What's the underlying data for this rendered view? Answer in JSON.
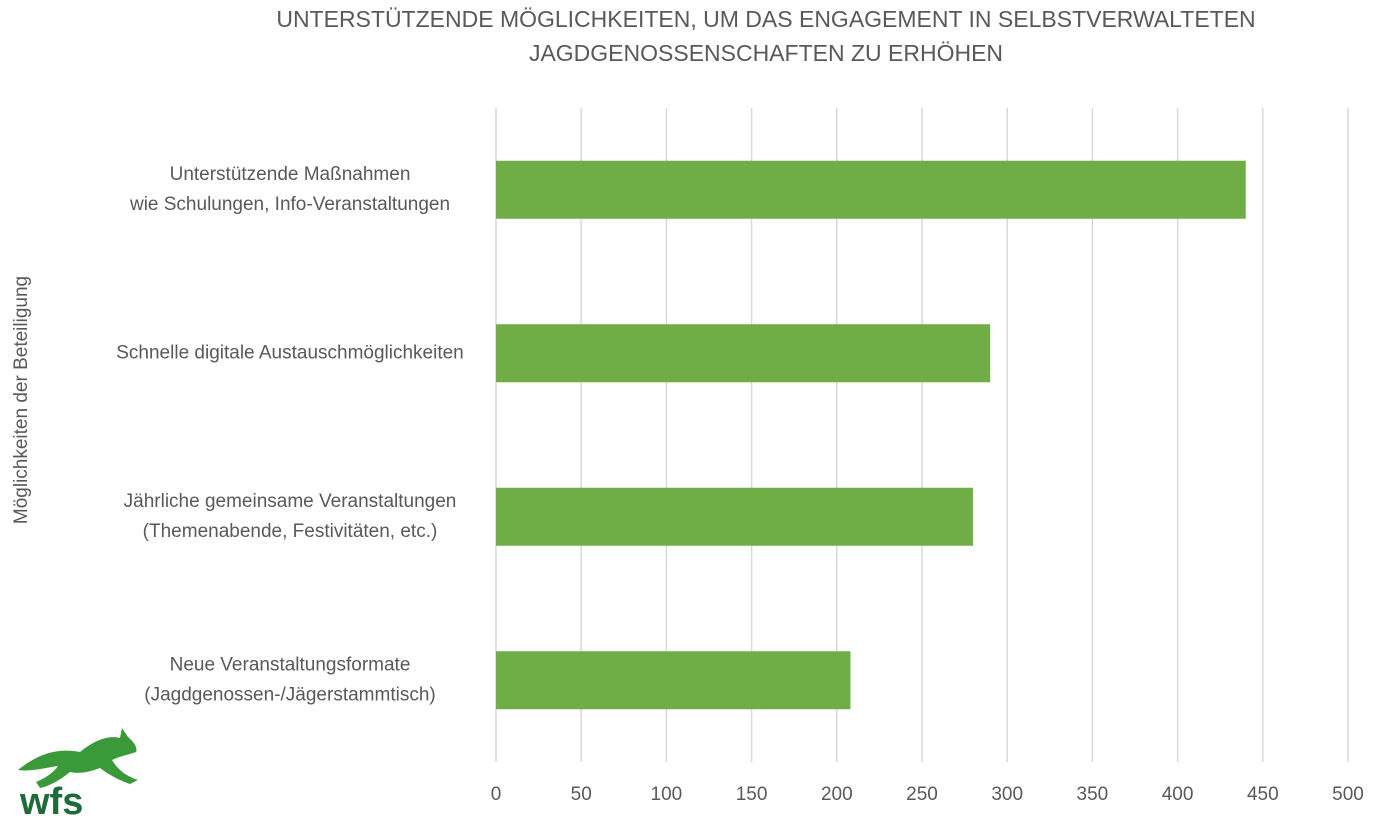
{
  "chart_data": {
    "type": "bar",
    "orientation": "horizontal",
    "title": "UNTERSTÜTZENDE MÖGLICHKEITEN, UM DAS ENGAGEMENT IN SELBSTVERWALTETEN\nJAGDGENOSSENSCHAFTEN ZU ERHÖHEN",
    "y_label": "Möglichkeiten der Beteiligung",
    "categories": [
      "Unterstützende Maßnahmen\nwie Schulungen, Info-Veranstaltungen",
      "Schnelle digitale Austauschmöglichkeiten",
      "Jährliche gemeinsame Veranstaltungen\n(Themenabende, Festivitäten, etc.)",
      "Neue Veranstaltungsformate\n(Jagdgenossen-/Jägerstammtisch)"
    ],
    "values": [
      440,
      290,
      280,
      208
    ],
    "color": "#70ad47",
    "xlim": [
      0,
      500
    ],
    "xticks": [
      0,
      50,
      100,
      150,
      200,
      250,
      300,
      350,
      400,
      450,
      500
    ],
    "grid": true
  },
  "logo": "wfs"
}
